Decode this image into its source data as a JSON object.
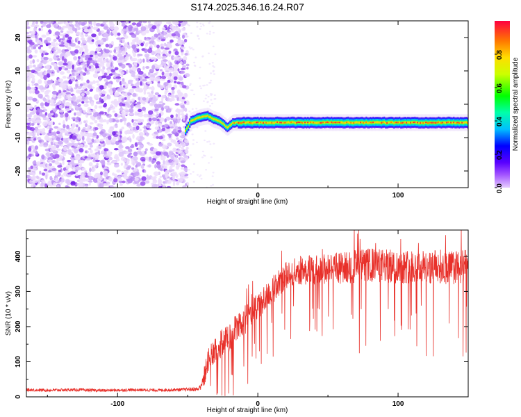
{
  "title": "S174.2025.346.16.24.R07",
  "colors": {
    "signal": "#e8302a",
    "noise": "#9b55f0",
    "frame": "#000000"
  },
  "chart_data": [
    {
      "type": "heatmap",
      "xlabel": "Height of straight line (km)",
      "ylabel": "Frequency (Hz)",
      "xlim": [
        -165,
        150
      ],
      "ylim": [
        -25,
        25
      ],
      "x_ticks": [
        "-100",
        "0",
        "100"
      ],
      "y_ticks": [
        "20",
        "10",
        "0",
        "-10",
        "-20"
      ],
      "noise_region_x": [
        -165,
        -50
      ],
      "tone": {
        "x_start": -52,
        "x_end": 150,
        "onset_freq": -8,
        "steady_freq": -5.5,
        "trace": [
          [
            -52,
            -8
          ],
          [
            -48,
            -5
          ],
          [
            -42,
            -4
          ],
          [
            -36,
            -3.5
          ],
          [
            -32,
            -4.5
          ],
          [
            -28,
            -5
          ],
          [
            -22,
            -7
          ],
          [
            -18,
            -5.5
          ],
          [
            -10,
            -5.5
          ],
          [
            0,
            -5.5
          ],
          [
            50,
            -5.5
          ],
          [
            100,
            -5.5
          ],
          [
            150,
            -5.5
          ]
        ]
      },
      "colorbar": {
        "label": "Normalized spectral amplitude",
        "range": [
          0.0,
          1.0
        ],
        "ticks": [
          "0.0",
          "0.2",
          "0.4",
          "0.6",
          "0.8"
        ]
      }
    },
    {
      "type": "line",
      "xlabel": "Height of straight line (km)",
      "ylabel": "SNR (10 * v/v)",
      "xlim": [
        -165,
        150
      ],
      "ylim": [
        0,
        475
      ],
      "x_ticks": [
        "-100",
        "0",
        "100"
      ],
      "y_ticks": [
        "400",
        "300",
        "200",
        "100",
        "0"
      ],
      "series": [
        {
          "name": "SNR",
          "x": [
            -165,
            -150,
            -130,
            -110,
            -90,
            -70,
            -50,
            -42,
            -38,
            -35,
            -30,
            -25,
            -20,
            -15,
            -10,
            -5,
            0,
            5,
            10,
            15,
            20,
            25,
            30,
            40,
            50,
            60,
            70,
            80,
            90,
            100,
            110,
            120,
            130,
            140,
            150
          ],
          "mean": [
            20,
            19,
            20,
            18,
            20,
            19,
            21,
            22,
            60,
            110,
            130,
            160,
            170,
            200,
            215,
            240,
            255,
            280,
            300,
            325,
            345,
            355,
            360,
            362,
            365,
            368,
            372,
            375,
            372,
            370,
            373,
            369,
            371,
            368,
            370
          ],
          "spread": [
            6,
            6,
            6,
            6,
            6,
            6,
            7,
            9,
            45,
            50,
            55,
            60,
            60,
            60,
            60,
            55,
            55,
            55,
            55,
            55,
            55,
            55,
            60,
            60,
            65,
            65,
            70,
            70,
            70,
            70,
            70,
            70,
            70,
            70,
            70
          ]
        }
      ]
    }
  ]
}
